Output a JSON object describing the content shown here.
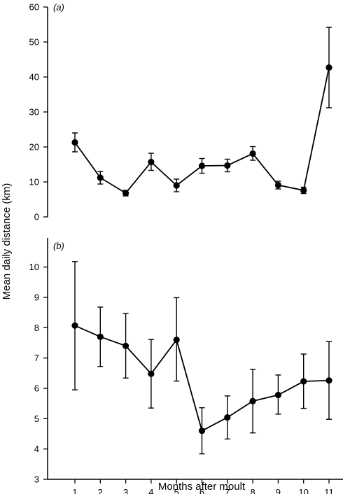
{
  "chart_data": [
    {
      "type": "line",
      "panel_label": "(a)",
      "x": [
        1,
        2,
        3,
        4,
        5,
        6,
        7,
        8,
        9,
        10,
        11
      ],
      "ylim": [
        0,
        60
      ],
      "yticks": [
        0,
        10,
        20,
        30,
        40,
        50,
        60
      ],
      "series": [
        {
          "values": [
            21.3,
            11.2,
            6.8,
            15.7,
            9.0,
            14.6,
            14.7,
            18.1,
            9.1,
            7.6,
            42.7
          ],
          "err_low": [
            18.6,
            9.4,
            6.0,
            13.3,
            7.2,
            12.5,
            12.9,
            16.2,
            8.0,
            6.7,
            31.2
          ],
          "err_high": [
            24.0,
            13.0,
            7.6,
            18.2,
            10.8,
            16.7,
            16.5,
            20.1,
            10.2,
            8.5,
            54.2
          ]
        }
      ]
    },
    {
      "type": "line",
      "panel_label": "(b)",
      "x": [
        1,
        2,
        3,
        4,
        5,
        6,
        7,
        8,
        9,
        10,
        11
      ],
      "xticks": [
        "1",
        "2",
        "3",
        "4",
        "5",
        "6",
        "7",
        "8",
        "9",
        "10",
        "11"
      ],
      "ylim": [
        3,
        10.5
      ],
      "yticks": [
        3,
        4,
        5,
        6,
        7,
        8,
        9,
        10
      ],
      "series": [
        {
          "values": [
            8.07,
            7.7,
            7.4,
            6.48,
            7.6,
            4.6,
            5.04,
            5.58,
            5.78,
            6.23,
            6.26
          ],
          "err_low": [
            5.95,
            6.72,
            6.34,
            5.35,
            6.24,
            3.84,
            4.33,
            4.53,
            5.15,
            5.34,
            4.98
          ],
          "err_high": [
            10.18,
            8.68,
            8.47,
            7.61,
            8.99,
            5.36,
            5.75,
            6.63,
            6.44,
            7.13,
            7.54
          ]
        }
      ]
    }
  ],
  "xlabel": "Months after moult",
  "ylabel": "Mean daily distance (km)"
}
